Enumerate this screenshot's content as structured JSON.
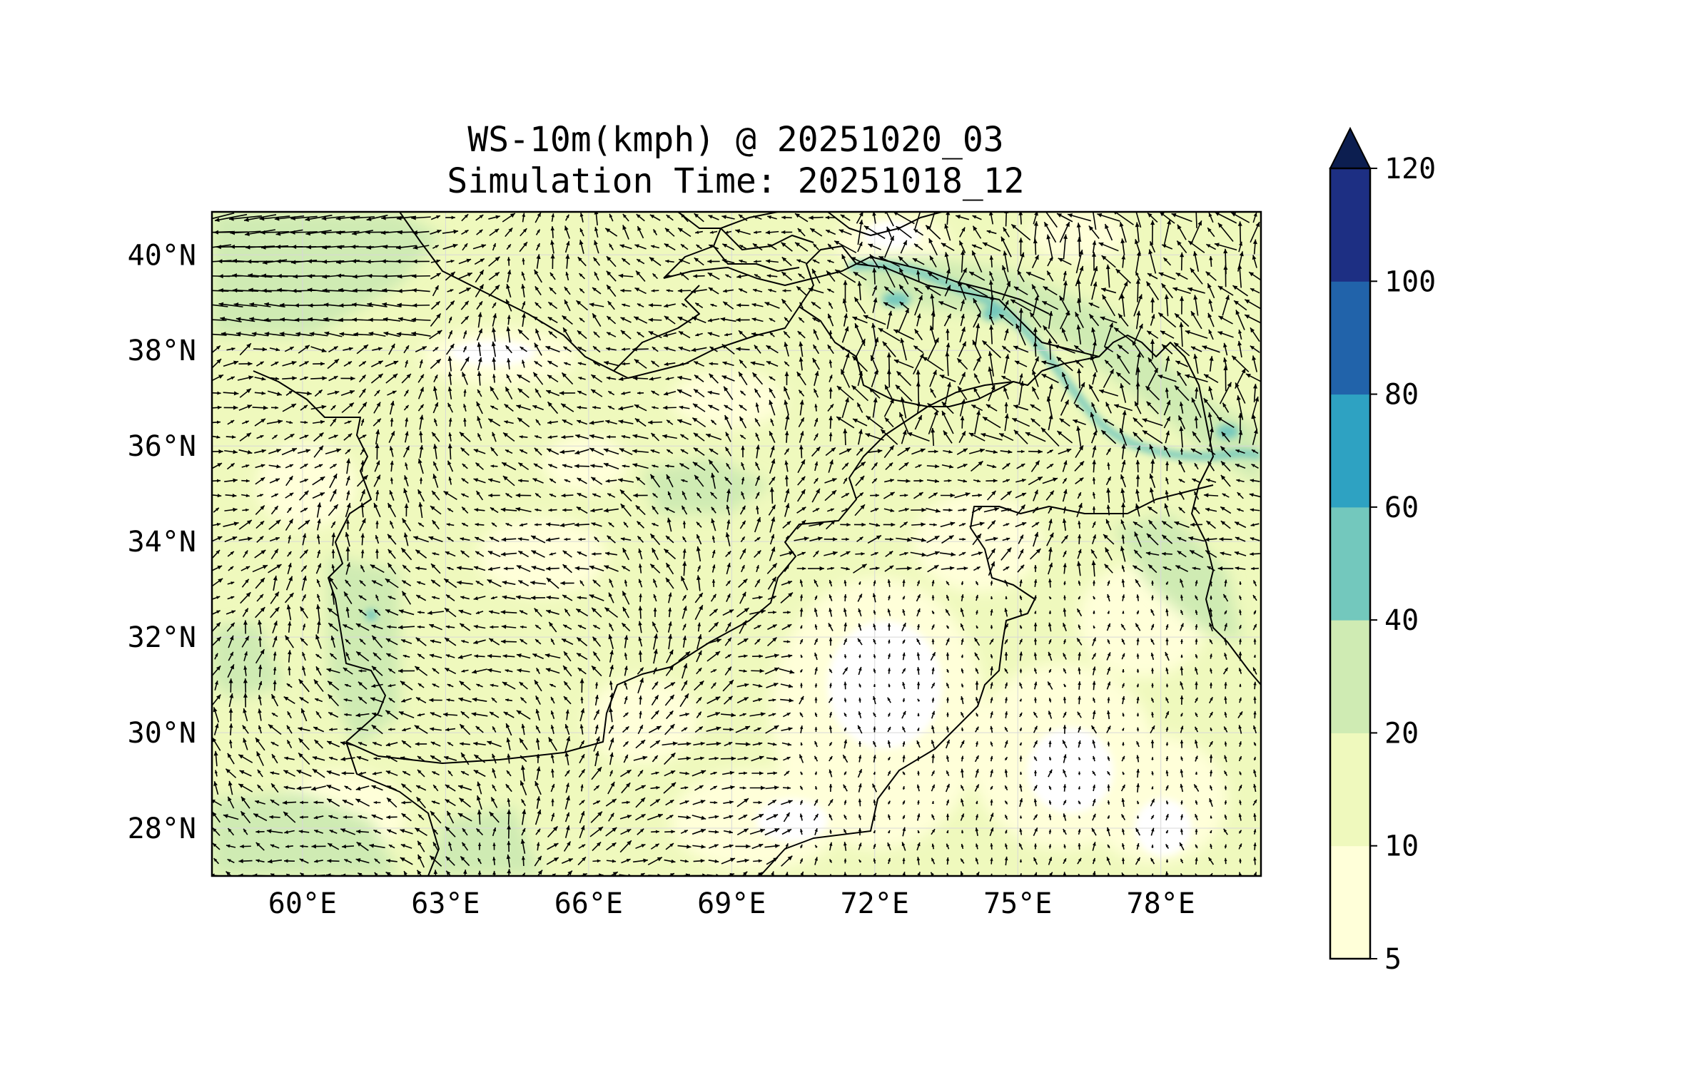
{
  "title": {
    "line1": "WS-10m(kmph) @ 20251020_03",
    "line2": "Simulation Time: 20251018_12"
  },
  "map": {
    "lon_range": [
      58.1,
      80.1
    ],
    "lat_range": [
      27.0,
      40.9
    ],
    "xticks": [
      {
        "value": 60,
        "label": "60°E"
      },
      {
        "value": 63,
        "label": "63°E"
      },
      {
        "value": 66,
        "label": "66°E"
      },
      {
        "value": 69,
        "label": "69°E"
      },
      {
        "value": 72,
        "label": "72°E"
      },
      {
        "value": 75,
        "label": "75°E"
      },
      {
        "value": 78,
        "label": "78°E"
      }
    ],
    "yticks": [
      {
        "value": 28,
        "label": "28°N"
      },
      {
        "value": 30,
        "label": "30°N"
      },
      {
        "value": 32,
        "label": "32°N"
      },
      {
        "value": 34,
        "label": "34°N"
      },
      {
        "value": 36,
        "label": "36°N"
      },
      {
        "value": 38,
        "label": "38°N"
      },
      {
        "value": 40,
        "label": "40°N"
      }
    ],
    "gridlines": true,
    "field": "10 m wind speed (filled contours) with wind vectors (arrows)"
  },
  "colorbar": {
    "levels": [
      5,
      10,
      20,
      40,
      60,
      80,
      100,
      120
    ],
    "tick_labels": [
      "5",
      "10",
      "20",
      "40",
      "60",
      "80",
      "100",
      "120"
    ],
    "colors": [
      "#ffffd9",
      "#eff9bd",
      "#cfebb3",
      "#73c8bd",
      "#2ea2c2",
      "#2163aa",
      "#1d2f83"
    ],
    "extend_color": "#0c1e50",
    "extend": "max"
  },
  "colors": {
    "land_low": "#ffffd9",
    "land_mid": "#eff9bd",
    "land_high": "#cfebb3",
    "ridge": "#73c8bd",
    "arrow": "#000000",
    "border": "#000000"
  }
}
